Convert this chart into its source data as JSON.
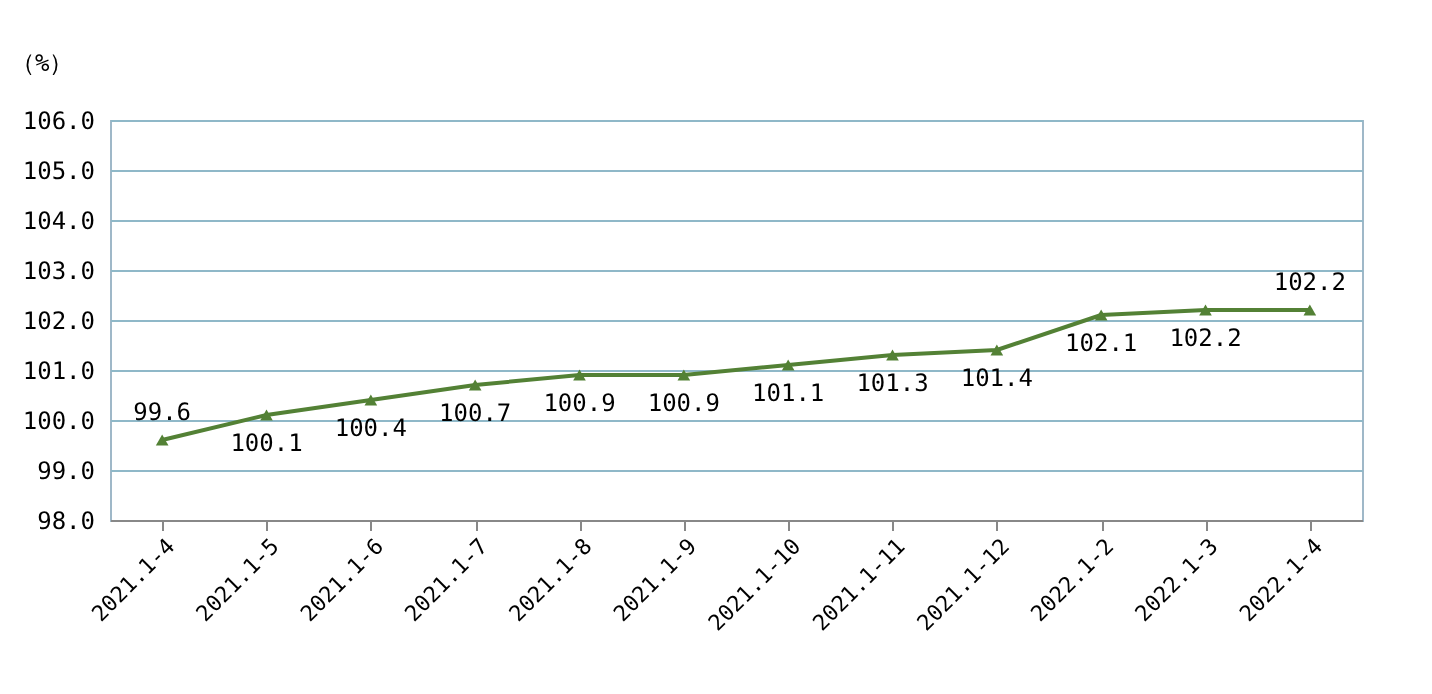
{
  "chart_data": {
    "type": "line",
    "ylabel": "（%）",
    "categories": [
      "2021.1-4",
      "2021.1-5",
      "2021.1-6",
      "2021.1-7",
      "2021.1-8",
      "2021.1-9",
      "2021.1-10",
      "2021.1-11",
      "2021.1-12",
      "2022.1-2",
      "2022.1-3",
      "2022.1-4"
    ],
    "series": [
      {
        "color": "#538135",
        "values": [
          99.6,
          100.1,
          100.4,
          100.7,
          100.9,
          100.9,
          101.1,
          101.3,
          101.4,
          102.1,
          102.2,
          102.2
        ]
      }
    ],
    "ylim": [
      98,
      106
    ],
    "yticks": [
      {
        "value": 98,
        "label": "98.0"
      },
      {
        "value": 99,
        "label": "99.0"
      },
      {
        "value": 100,
        "label": "100.0"
      },
      {
        "value": 101,
        "label": "101.0"
      },
      {
        "value": 102,
        "label": "102.0"
      },
      {
        "value": 103,
        "label": "103.0"
      },
      {
        "value": 104,
        "label": "104.0"
      },
      {
        "value": 105,
        "label": "105.0"
      },
      {
        "value": 106,
        "label": "106.0"
      }
    ],
    "grid": "y",
    "marker": "triangle",
    "line_style": "solid",
    "data_labels": true
  }
}
